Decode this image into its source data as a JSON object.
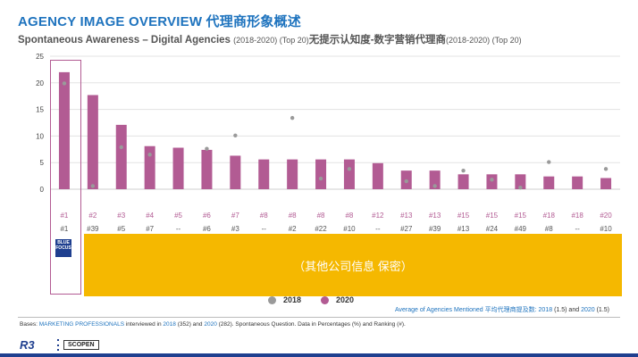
{
  "header": {
    "title": "AGENCY IMAGE OVERVIEW 代理商形象概述",
    "subtitle_main": "Spontaneous Awareness – Digital Agencies",
    "subtitle_years_1": "(2018-2020) (Top 20)",
    "subtitle_cn": "无提示认知度-数字营销代理商",
    "subtitle_years_2": "(2018-2020) (Top 20)"
  },
  "chart_data": {
    "type": "bar",
    "ylim": [
      0,
      25
    ],
    "yticks": [
      "0",
      "5",
      "10",
      "15",
      "20",
      "25"
    ],
    "grid": true,
    "series": [
      {
        "name": "2020",
        "values": [
          22.0,
          17.7,
          12.1,
          8.1,
          7.8,
          7.4,
          6.3,
          5.6,
          5.6,
          5.6,
          5.6,
          4.9,
          3.5,
          3.5,
          2.8,
          2.8,
          2.8,
          2.4,
          2.4,
          2.1
        ]
      },
      {
        "name": "2018",
        "values": [
          19.9,
          0.6,
          7.9,
          6.5,
          null,
          7.6,
          10.1,
          null,
          13.4,
          2.0,
          3.8,
          null,
          1.5,
          0.6,
          3.5,
          1.8,
          0.3,
          5.1,
          null,
          3.8
        ]
      }
    ],
    "ranking_2020": [
      "#1",
      "#2",
      "#3",
      "#4",
      "#5",
      "#6",
      "#7",
      "#8",
      "#8",
      "#8",
      "#8",
      "#12",
      "#13",
      "#13",
      "#15",
      "#15",
      "#15",
      "#18",
      "#18",
      "#20"
    ],
    "ranking_2018": [
      "#1",
      "#39",
      "#5",
      "#7",
      "--",
      "#6",
      "#3",
      "--",
      "#2",
      "#22",
      "#10",
      "--",
      "#27",
      "#39",
      "#13",
      "#24",
      "#49",
      "#8",
      "--",
      "#10"
    ],
    "legend": {
      "position": "bottom-center"
    }
  },
  "colors": {
    "bar_2020": "#b25b93",
    "dot_2018": "#9a9a9a",
    "title": "#1e73be",
    "confidential_bg": "#f5b800",
    "brand": "#1f3f8f"
  },
  "logo": {
    "text": "BLUE FOCUS"
  },
  "confidential_label": "（其他公司信息 保密）",
  "legend": {
    "label_2018": "2018",
    "label_2020": "2020"
  },
  "avg_note": {
    "label": "Average of Agencies Mentioned 平均代理商提及数:",
    "year1": "2018",
    "val1": "(1.5)",
    "and": "and",
    "year2": "2020",
    "val2": "(1.5)"
  },
  "footer": {
    "bases_label": "Bases:",
    "bases_group": "MARKETING PROFESSIONALS",
    "bases_text1": "interviewed in",
    "year1": "2018",
    "n1": "(352) and",
    "year2": "2020",
    "n2": "(282). Spontaneous Question. Data in Percentages (%) and Ranking (#).",
    "brand1": "R3",
    "brand2": "SCOPEN"
  }
}
